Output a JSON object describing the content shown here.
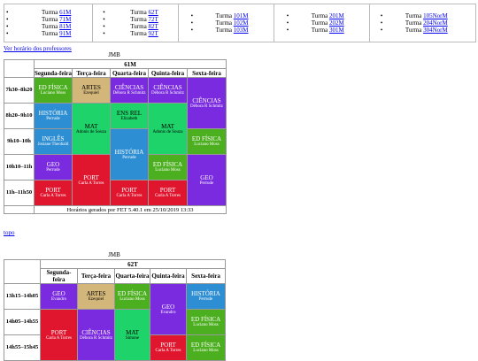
{
  "nav": {
    "columns": [
      {
        "items": [
          {
            "prefix": "Turma ",
            "link": "61M"
          },
          {
            "prefix": "Turma ",
            "link": "71M"
          },
          {
            "prefix": "Turma ",
            "link": "81M"
          },
          {
            "prefix": "Turma ",
            "link": "91M"
          }
        ]
      },
      {
        "items": [
          {
            "prefix": "Turma ",
            "link": "62T"
          },
          {
            "prefix": "Turma ",
            "link": "72T"
          },
          {
            "prefix": "Turma ",
            "link": "82T"
          },
          {
            "prefix": "Turma ",
            "link": "92T"
          }
        ]
      },
      {
        "items": [
          {
            "prefix": "Turma ",
            "link": "101M"
          },
          {
            "prefix": "Turma ",
            "link": "102M"
          },
          {
            "prefix": "Turma ",
            "link": "103M"
          }
        ]
      },
      {
        "items": [
          {
            "prefix": "Turma ",
            "link": "201M"
          },
          {
            "prefix": "Turma ",
            "link": "202M"
          },
          {
            "prefix": "Turma ",
            "link": "301M"
          }
        ]
      },
      {
        "items": [
          {
            "prefix": "Turma ",
            "link": "105NorM"
          },
          {
            "prefix": "Turma ",
            "link": "204NorM"
          },
          {
            "prefix": "Turma ",
            "link": "304NorM"
          }
        ]
      }
    ]
  },
  "professors_link": "Ver horário dos professores",
  "topo_link": "topo",
  "days": [
    "Segunda-feira",
    "Terça-feira",
    "Quarta-feira",
    "Quinta-feira",
    "Sexta-feira"
  ],
  "table1": {
    "school": "JMB",
    "class": "61M",
    "footer": "Horários gerados por FET 5.40.1 em 25/10/2019 13:33",
    "slots": [
      "7h30–8h20",
      "8h20–9h10",
      "9h10–10h",
      "10h10–11h",
      "11h–11h50"
    ],
    "cells": {
      "mon1": {
        "subject": "ED FÍSICA",
        "teacher": "Luciano Moss",
        "color": "#4caf1f"
      },
      "tue1": {
        "subject": "ARTES",
        "teacher": "Ezequiel",
        "color": "#d2b67a"
      },
      "wed1": {
        "subject": "CIÊNCIAS",
        "teacher": "Débora R Schmitz",
        "color": "#7a2be0"
      },
      "thu1": {
        "subject": "CIÊNCIAS",
        "teacher": "Débora R Schmitz",
        "color": "#7a2be0"
      },
      "fri1": {
        "subject": "CIÊNCIAS",
        "teacher": "Débora R Schmitz",
        "color": "#7a2be0"
      },
      "mon2": {
        "subject": "HISTÓRIA",
        "teacher": "Perrude",
        "color": "#2e8ed3"
      },
      "tue2": {
        "subject": "MAT",
        "teacher": "Adonis de Souza",
        "color": "#1fd36b"
      },
      "wed2": {
        "subject": "ENS REL",
        "teacher": "Elizabeth",
        "color": "#1fd36b"
      },
      "thu2": {
        "subject": "MAT",
        "teacher": "Adonis de Souza",
        "color": "#1fd36b"
      },
      "mon3": {
        "subject": "INGLÊS",
        "teacher": "Josiane Theobald",
        "color": "#2e8ed3"
      },
      "wed3": {
        "subject": "HISTÓRIA",
        "teacher": "Perrude",
        "color": "#2e8ed3"
      },
      "fri3": {
        "subject": "ED FÍSICA",
        "teacher": "Luciano Moss",
        "color": "#4caf1f"
      },
      "mon4": {
        "subject": "GEO",
        "teacher": "Perrude",
        "color": "#7a2be0"
      },
      "tue4": {
        "subject": "PORT",
        "teacher": "Carla A Torres",
        "color": "#e0162f"
      },
      "thu4": {
        "subject": "ED FÍSICA",
        "teacher": "Luciano Moss",
        "color": "#4caf1f"
      },
      "fri4": {
        "subject": "GEO",
        "teacher": "Perrude",
        "color": "#7a2be0"
      },
      "mon5": {
        "subject": "PORT",
        "teacher": "Carla A Torres",
        "color": "#e0162f"
      },
      "wed5": {
        "subject": "PORT",
        "teacher": "Carla A Torres",
        "color": "#e0162f"
      },
      "thu5": {
        "subject": "PORT",
        "teacher": "Carla A Torres",
        "color": "#e0162f"
      }
    }
  },
  "table2": {
    "school": "JMB",
    "class": "62T",
    "slots": [
      "13h15–14h05",
      "14h05–14h55",
      "14h55–15h45"
    ],
    "cells": {
      "mon1": {
        "subject": "GEO",
        "teacher": "Evandro",
        "color": "#7a2be0"
      },
      "tue1": {
        "subject": "ARTES",
        "teacher": "Ezequiel",
        "color": "#d2b67a"
      },
      "wed1": {
        "subject": "ED FÍSICA",
        "teacher": "Luciano Moss",
        "color": "#4caf1f"
      },
      "thu1": {
        "subject": "GEO",
        "teacher": "Evandro",
        "color": "#7a2be0"
      },
      "fri1": {
        "subject": "HISTÓRIA",
        "teacher": "Perrude",
        "color": "#2e8ed3"
      },
      "mon2": {
        "subject": "PORT",
        "teacher": "Carla A Torres",
        "color": "#e0162f"
      },
      "tue2": {
        "subject": "CIÊNCIAS",
        "teacher": "Débora R Schmitz",
        "color": "#7a2be0"
      },
      "wed2": {
        "subject": "MAT",
        "teacher": "Simone",
        "color": "#1fd36b"
      },
      "fri2": {
        "subject": "ED FÍSICA",
        "teacher": "Luciano Moss",
        "color": "#4caf1f"
      },
      "thu3": {
        "subject": "PORT",
        "teacher": "Carla A Torres",
        "color": "#e0162f"
      },
      "fri3": {
        "subject": "ED FÍSICA",
        "teacher": "Luciano Moss",
        "color": "#4caf1f"
      }
    }
  }
}
